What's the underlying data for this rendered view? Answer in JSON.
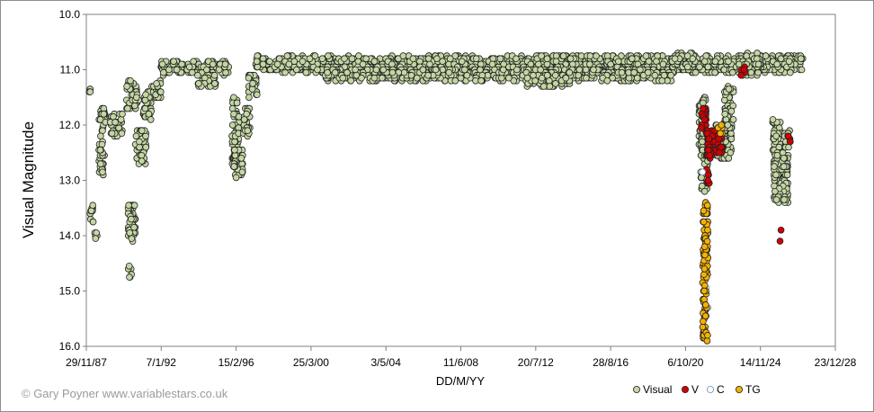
{
  "chart_data": {
    "type": "scatter",
    "title": "",
    "xlabel": "DD/M/YY",
    "ylabel": "Visual Magnitude",
    "x_ticks": [
      "29/11/87",
      "7/1/92",
      "15/2/96",
      "25/3/00",
      "3/5/04",
      "11/6/08",
      "20/7/12",
      "28/8/16",
      "6/10/20",
      "14/11/24",
      "23/12/28"
    ],
    "x_range_years": [
      1987.91,
      2028.98
    ],
    "ylim": [
      16.0,
      10.0
    ],
    "y_inverted": true,
    "y_ticks": [
      "10.0",
      "11.0",
      "12.0",
      "13.0",
      "14.0",
      "15.0",
      "16.0"
    ],
    "grid": false,
    "legend_position": "bottom-right",
    "credit": "© Gary Poyner www.variablestars.co.uk",
    "series": [
      {
        "name": "Visual",
        "color": "#c4d6a4",
        "stroke": "#222222",
        "segments": [
          [
            1988.05,
            1988.15,
            11.3,
            11.4
          ],
          [
            1988.1,
            1988.3,
            13.4,
            13.8
          ],
          [
            1988.35,
            1988.5,
            13.9,
            14.1
          ],
          [
            1988.6,
            1989.0,
            11.7,
            12.1
          ],
          [
            1988.6,
            1988.9,
            12.2,
            12.9
          ],
          [
            1989.2,
            1989.9,
            11.8,
            12.2
          ],
          [
            1990.1,
            1990.8,
            11.2,
            11.7
          ],
          [
            1990.2,
            1990.6,
            13.4,
            14.1
          ],
          [
            1990.2,
            1990.4,
            14.55,
            14.75
          ],
          [
            1990.6,
            1991.2,
            12.1,
            12.7
          ],
          [
            1991.0,
            1991.5,
            11.4,
            11.9
          ],
          [
            1991.5,
            1992.0,
            11.2,
            11.5
          ],
          [
            1992.0,
            1995.8,
            10.85,
            11.1
          ],
          [
            1994.0,
            1995.0,
            11.1,
            11.3
          ],
          [
            1995.9,
            1996.3,
            11.5,
            12.8
          ],
          [
            1996.0,
            1996.5,
            12.4,
            12.95
          ],
          [
            1996.5,
            1996.9,
            11.7,
            12.2
          ],
          [
            1996.8,
            1997.3,
            11.1,
            11.5
          ],
          [
            1997.2,
            2027.2,
            10.75,
            11.05
          ],
          [
            2001.0,
            2020.0,
            11.0,
            11.2
          ],
          [
            2012.0,
            2014.5,
            11.0,
            11.3
          ],
          [
            2020.0,
            2021.3,
            10.7,
            10.95
          ],
          [
            2021.5,
            2021.9,
            11.5,
            12.4
          ],
          [
            2021.6,
            2022.0,
            12.3,
            13.2
          ],
          [
            2022.4,
            2023.3,
            12.0,
            12.6
          ],
          [
            2022.9,
            2023.4,
            11.3,
            12.1
          ],
          [
            2023.7,
            2024.9,
            10.7,
            11.1
          ],
          [
            2025.5,
            2026.0,
            11.9,
            12.5
          ],
          [
            2025.6,
            2026.4,
            12.5,
            13.4
          ],
          [
            2026.2,
            2026.5,
            12.1,
            12.4
          ]
        ]
      },
      {
        "name": "V",
        "color": "#d40000",
        "stroke": "#222222",
        "segments": [
          [
            2021.6,
            2021.9,
            11.7,
            12.1
          ],
          [
            2021.9,
            2022.4,
            12.1,
            12.6
          ],
          [
            2021.9,
            2022.1,
            12.8,
            13.05
          ],
          [
            2022.4,
            2022.8,
            12.2,
            12.5
          ],
          [
            2023.8,
            2024.1,
            10.95,
            11.1
          ],
          [
            2026.3,
            2026.55,
            12.2,
            12.35
          ]
        ],
        "points": [
          [
            2026.0,
            13.9
          ],
          [
            2025.95,
            14.1
          ]
        ]
      },
      {
        "name": "C",
        "color": "#ffffff",
        "stroke": "#6f8fb5",
        "points": [
          [
            2021.7,
            12.85
          ],
          [
            2021.8,
            14.5
          ],
          [
            2021.9,
            14.95
          ],
          [
            2022.0,
            15.3
          ]
        ]
      },
      {
        "name": "TG",
        "color": "#f5b300",
        "stroke": "#222222",
        "segments": [
          [
            2021.7,
            2022.0,
            13.4,
            15.9
          ],
          [
            2022.5,
            2022.8,
            12.0,
            12.15
          ]
        ]
      }
    ]
  }
}
